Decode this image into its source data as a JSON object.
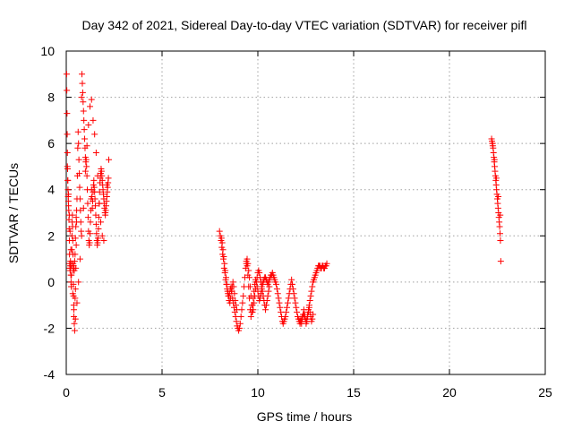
{
  "chart_data": {
    "type": "scatter",
    "title": "Day 342 of 2021, Sidereal Day-to-day VTEC variation (SDTVAR) for receiver pifl",
    "xlabel": "GPS time / hours",
    "ylabel": "SDTVAR / TECUs",
    "xlim": [
      0,
      25
    ],
    "ylim": [
      -4,
      10
    ],
    "xticks": [
      "0",
      "5",
      "10",
      "15",
      "20",
      "25"
    ],
    "yticks": [
      "-4",
      "-2",
      "0",
      "2",
      "4",
      "6",
      "8",
      "10"
    ],
    "grid": true,
    "marker": "plus",
    "color": "#ff0000",
    "series": [
      {
        "x": [
          0.02,
          0.03,
          0.04,
          0.05,
          0.06,
          0.07,
          0.08,
          0.09,
          0.1,
          0.11,
          0.12,
          0.13,
          0.14,
          0.15,
          0.16,
          0.17,
          0.18,
          0.19,
          0.2,
          0.21,
          0.22,
          0.23,
          0.24,
          0.25,
          0.26,
          0.27,
          0.28,
          0.29,
          0.3,
          0.31,
          0.32,
          0.33,
          0.34,
          0.35,
          0.36,
          0.37,
          0.38,
          0.39,
          0.4,
          0.42,
          0.44,
          0.46,
          0.48,
          0.5,
          0.52,
          0.54,
          0.56,
          0.58,
          0.6,
          0.62,
          0.64,
          0.66,
          0.68,
          0.7,
          0.72,
          0.74,
          0.76,
          0.78,
          0.8,
          0.82,
          0.84,
          0.86,
          0.88,
          0.9,
          0.92,
          0.94,
          0.96,
          0.98,
          1.0,
          1.02,
          1.04,
          1.06,
          1.08,
          1.1,
          1.12,
          1.14,
          1.16,
          1.18,
          1.2,
          1.22,
          1.24,
          1.26,
          1.28,
          1.3,
          1.32,
          1.34,
          1.36,
          1.38,
          1.4,
          1.42,
          1.44,
          1.46,
          1.48,
          1.5,
          1.52,
          1.54,
          1.56,
          1.58,
          1.6,
          1.62,
          1.64,
          1.66,
          1.68,
          1.7,
          1.72,
          1.74,
          1.76,
          1.78,
          1.8,
          1.82,
          1.84,
          1.86,
          1.88,
          1.9,
          1.92,
          1.94,
          1.96,
          1.98,
          2.0,
          2.02,
          2.04,
          2.06,
          2.08,
          2.1,
          2.12,
          2.14,
          2.16,
          2.18,
          2.2,
          2.22,
          0.06,
          0.08,
          0.12,
          0.16,
          0.2,
          0.24,
          0.28,
          0.34,
          0.4,
          0.48,
          0.56,
          0.64,
          0.72,
          0.8,
          0.9,
          1.0,
          1.08,
          1.16,
          1.24,
          1.32,
          1.4,
          1.48,
          1.56,
          1.64,
          1.72,
          1.8,
          1.88,
          1.96,
          2.04,
          2.12,
          0.36,
          0.38,
          0.4,
          0.42,
          0.44,
          0.46,
          0.48,
          0.5,
          0.52,
          0.54
        ],
        "y": [
          9.0,
          8.3,
          7.3,
          6.4,
          5.6,
          4.9,
          4.4,
          4.0,
          3.7,
          3.5,
          3.3,
          3.1,
          2.7,
          2.3,
          1.8,
          1.2,
          0.8,
          0.6,
          0.5,
          0.7,
          0.9,
          0.6,
          0.3,
          0.0,
          -0.2,
          0.3,
          0.8,
          1.4,
          2.0,
          2.6,
          2.9,
          2.4,
          1.8,
          1.2,
          0.5,
          -0.1,
          -0.6,
          -1.0,
          -1.5,
          -1.8,
          -2.1,
          -0.7,
          -0.3,
          0.6,
          1.6,
          2.6,
          3.6,
          4.6,
          5.8,
          6.5,
          6.0,
          5.3,
          4.7,
          4.1,
          3.6,
          3.1,
          2.6,
          2.2,
          8.0,
          9.0,
          8.6,
          8.2,
          7.8,
          7.4,
          7.0,
          6.6,
          6.2,
          5.8,
          5.4,
          5.2,
          5.3,
          5.0,
          4.6,
          4.0,
          3.4,
          2.8,
          2.2,
          1.8,
          1.6,
          1.7,
          2.1,
          2.6,
          3.1,
          3.6,
          4.0,
          3.7,
          3.2,
          3.5,
          3.9,
          4.2,
          4.4,
          4.1,
          3.9,
          3.6,
          3.3,
          2.9,
          2.5,
          2.1,
          1.8,
          1.6,
          1.7,
          1.9,
          2.3,
          2.8,
          3.4,
          3.9,
          4.3,
          4.5,
          4.7,
          4.9,
          4.8,
          4.6,
          4.4,
          4.2,
          4.0,
          3.8,
          3.6,
          3.4,
          3.2,
          3.0,
          2.9,
          3.1,
          3.3,
          3.5,
          3.7,
          3.9,
          4.1,
          4.3,
          4.5,
          5.3,
          5.0,
          4.4,
          3.8,
          2.9,
          2.2,
          1.4,
          0.7,
          -0.5,
          -1.2,
          -1.6,
          -0.9,
          0.0,
          1.0,
          2.0,
          3.2,
          4.8,
          5.9,
          6.8,
          7.6,
          7.9,
          7.0,
          6.4,
          5.6,
          4.6,
          3.4,
          2.6,
          2.0,
          1.8,
          3.0,
          4.2,
          0.8,
          0.7,
          0.6,
          0.5,
          0.9,
          1.2,
          1.9,
          2.4,
          2.8,
          3.1
        ]
      },
      {
        "x": [
          8.0,
          8.04,
          8.08,
          8.12,
          8.16,
          8.2,
          8.24,
          8.28,
          8.32,
          8.36,
          8.4,
          8.44,
          8.48,
          8.52,
          8.56,
          8.6,
          8.64,
          8.68,
          8.72,
          8.76,
          8.8,
          8.84,
          8.88,
          8.92,
          8.96,
          9.0,
          9.04,
          9.08,
          9.12,
          9.16,
          9.2,
          9.24,
          9.28,
          9.32,
          9.36,
          9.4,
          9.44,
          9.48,
          9.52,
          9.56,
          9.6,
          9.64,
          9.68,
          9.72,
          9.76,
          9.8,
          9.84,
          9.88,
          9.92,
          9.96,
          10.0,
          10.04,
          10.08,
          10.12,
          10.16,
          10.2,
          10.24,
          10.28,
          10.32,
          10.36,
          10.4,
          10.44,
          10.48,
          10.52,
          10.56,
          10.6,
          10.64,
          10.68,
          10.72,
          10.76,
          10.8,
          10.84,
          10.88,
          10.92,
          10.96,
          11.0,
          11.04,
          11.08,
          11.12,
          11.16,
          11.2,
          11.24,
          11.28,
          11.32,
          11.36,
          11.4,
          11.44,
          11.48,
          11.52,
          11.56,
          11.6,
          11.64,
          11.68,
          11.72,
          11.76,
          11.8,
          11.84,
          11.88,
          11.92,
          11.96,
          12.0,
          12.04,
          12.08,
          12.12,
          12.16,
          12.2,
          12.24,
          12.28,
          12.32,
          12.36,
          12.4,
          12.44,
          12.48,
          12.52,
          12.56,
          12.6,
          12.64,
          12.68,
          12.72,
          12.76,
          12.8,
          12.84,
          12.88,
          12.92,
          12.96,
          13.0,
          13.04,
          13.08,
          13.12,
          13.16,
          13.2,
          13.24,
          13.28,
          13.32,
          13.36,
          13.4,
          13.44,
          13.48,
          13.52,
          13.56,
          13.6,
          8.1,
          8.14,
          8.18,
          8.22,
          8.26,
          8.3,
          8.34,
          8.38,
          8.42,
          8.46,
          8.5,
          8.54,
          8.58,
          8.62,
          8.66,
          8.7,
          8.74,
          8.78,
          8.82,
          8.86,
          8.9,
          9.4,
          9.44,
          9.48,
          9.52,
          9.56,
          9.6,
          9.64,
          9.68,
          9.72,
          9.76,
          9.8,
          9.84,
          9.88,
          9.92,
          9.96,
          10.0,
          10.04,
          10.08,
          10.12,
          10.16,
          10.2,
          10.24,
          10.28,
          10.32,
          10.36,
          10.4,
          10.44,
          10.48,
          10.52,
          10.56,
          10.6,
          12.2,
          12.24,
          12.28,
          12.32,
          12.36,
          12.4,
          12.44,
          12.48,
          12.52,
          12.56,
          12.6,
          12.64,
          12.68,
          12.72,
          12.76,
          12.8,
          12.84,
          12.88
        ],
        "y": [
          2.2,
          2.0,
          1.8,
          1.5,
          1.2,
          1.0,
          0.6,
          0.4,
          0.1,
          -0.1,
          -0.3,
          -0.5,
          -0.6,
          -0.5,
          -0.3,
          -0.2,
          -0.4,
          -0.7,
          -0.9,
          -1.1,
          -1.3,
          -1.5,
          -1.7,
          -1.9,
          -2.0,
          -2.1,
          -2.0,
          -1.8,
          -1.5,
          -1.2,
          -0.9,
          -0.6,
          -0.2,
          0.2,
          0.6,
          0.9,
          0.7,
          0.3,
          -0.2,
          -0.7,
          -1.2,
          -1.5,
          -1.3,
          -1.0,
          -0.7,
          -0.4,
          -0.1,
          0.1,
          0.0,
          -0.2,
          -0.4,
          -0.6,
          -0.8,
          -0.7,
          -0.5,
          -0.3,
          -0.1,
          0.0,
          0.1,
          0.2,
          0.2,
          0.1,
          0.0,
          -0.1,
          0.0,
          0.1,
          0.2,
          0.3,
          0.3,
          0.4,
          0.3,
          0.2,
          0.1,
          0.0,
          -0.1,
          -0.3,
          -0.5,
          -0.7,
          -0.9,
          -1.1,
          -1.3,
          -1.5,
          -1.7,
          -1.8,
          -1.7,
          -1.6,
          -1.5,
          -1.3,
          -1.1,
          -0.9,
          -0.7,
          -0.5,
          -0.3,
          -0.1,
          0.1,
          -0.1,
          -0.3,
          -0.5,
          -0.7,
          -0.9,
          -1.1,
          -1.3,
          -1.5,
          -1.6,
          -1.7,
          -1.8,
          -1.7,
          -1.6,
          -1.5,
          -1.4,
          -1.4,
          -1.5,
          -1.6,
          -1.7,
          -1.6,
          -1.4,
          -1.2,
          -1.0,
          -0.8,
          -0.6,
          -0.4,
          -0.2,
          0.0,
          0.1,
          0.2,
          0.3,
          0.4,
          0.5,
          0.6,
          0.7,
          0.7,
          0.7,
          0.6,
          0.6,
          0.7,
          0.7,
          0.6,
          0.6,
          0.7,
          0.7,
          0.8,
          1.9,
          1.7,
          1.4,
          1.1,
          0.8,
          0.5,
          0.2,
          -0.1,
          -0.4,
          -0.6,
          -0.8,
          -0.9,
          -0.7,
          -0.4,
          -0.2,
          0.0,
          -0.2,
          -0.5,
          -0.8,
          -1.0,
          -1.2,
          0.8,
          1.0,
          0.8,
          0.5,
          0.2,
          -0.2,
          -0.6,
          -1.0,
          -1.3,
          -1.2,
          -0.9,
          -0.6,
          -0.3,
          0.0,
          0.2,
          0.4,
          0.5,
          0.4,
          0.2,
          0.0,
          -0.2,
          -0.4,
          -0.6,
          -0.8,
          -1.0,
          -1.2,
          -1.0,
          -0.8,
          -0.6,
          -0.4,
          -0.2,
          -1.6,
          -1.7,
          -1.8,
          -1.6,
          -1.4,
          -1.2,
          -1.4,
          -1.6,
          -1.8,
          -1.7,
          -1.5,
          -1.3,
          -1.1,
          -1.3,
          -1.5,
          -1.7,
          -1.6,
          -1.4
        ]
      },
      {
        "x": [
          22.2,
          22.22,
          22.24,
          22.26,
          22.28,
          22.3,
          22.32,
          22.34,
          22.36,
          22.38,
          22.4,
          22.42,
          22.44,
          22.46,
          22.48,
          22.5,
          22.52,
          22.54,
          22.56,
          22.58,
          22.6,
          22.62,
          22.64,
          22.66,
          22.68,
          22.25,
          22.35,
          22.45,
          22.55,
          22.65
        ],
        "y": [
          6.2,
          6.1,
          6.0,
          5.9,
          5.8,
          5.6,
          5.4,
          5.2,
          5.0,
          4.8,
          4.6,
          4.4,
          4.2,
          4.0,
          3.8,
          3.6,
          3.4,
          3.2,
          3.0,
          2.8,
          2.6,
          2.4,
          2.1,
          1.8,
          0.9,
          6.0,
          5.3,
          4.5,
          3.7,
          2.9
        ]
      }
    ]
  }
}
